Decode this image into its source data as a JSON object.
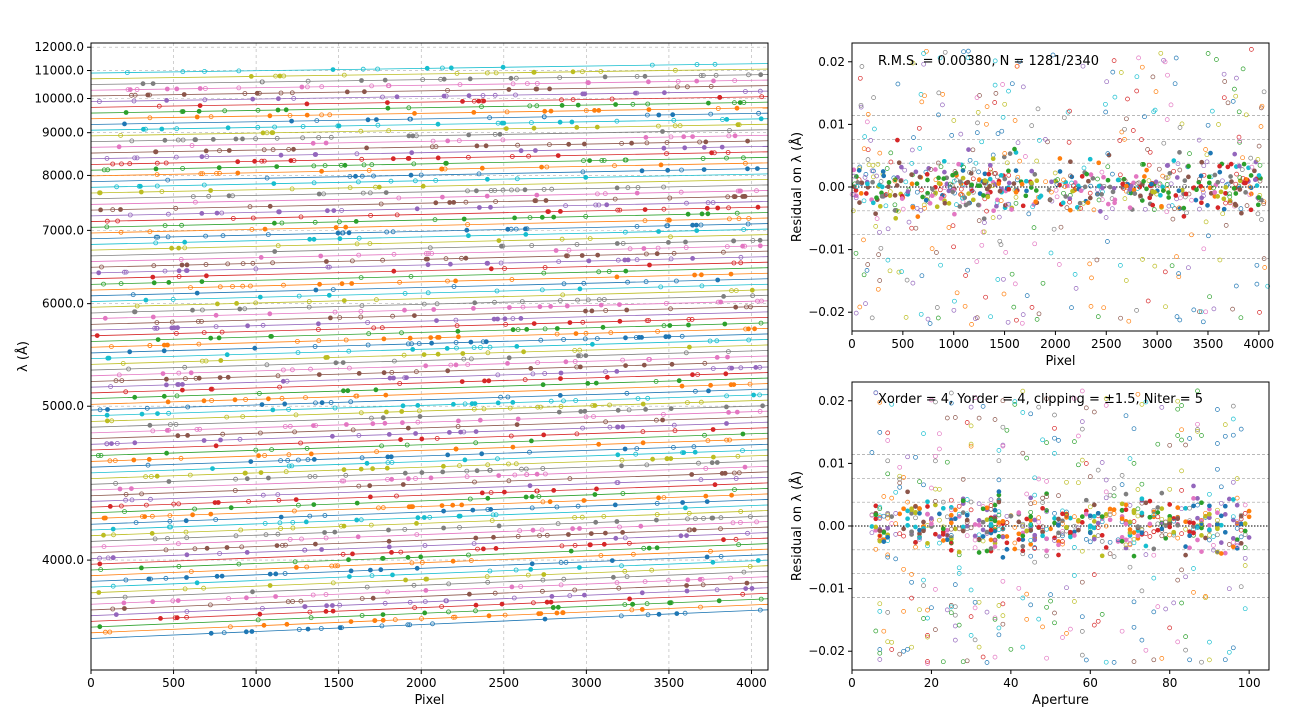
{
  "chart_data": [
    {
      "type": "scatter",
      "title": "",
      "xlabel": "Pixel",
      "ylabel": "λ (Å)",
      "xlim": [
        0,
        4100
      ],
      "ylim": [
        3500,
        12200
      ],
      "yscale": "reciprocal",
      "xticks": [
        0,
        500,
        1000,
        1500,
        2000,
        2500,
        3000,
        3500,
        4000
      ],
      "xtick_labels": [
        "0",
        "500",
        "1000",
        "1500",
        "2000",
        "2500",
        "3000",
        "3500",
        "4000"
      ],
      "yticks": [
        4000,
        5000,
        6000,
        7000,
        8000,
        9000,
        10000,
        11000,
        12000
      ],
      "ytick_labels": [
        "4000.0",
        "5000.0",
        "6000.0",
        "7000.0",
        "8000.0",
        "9000.0",
        "10000.0",
        "11000.0",
        "12000.0"
      ],
      "grid": true,
      "description_series": "one fitted wavelength line per echelle order (about 100 orders, lambda ≈ 3630 Å to 10900 Å at pixel 0, increasing ~3.5% across the detector); open and filled markers are identified arc lines",
      "order_lambda_range": [
        3630,
        10900
      ],
      "order_count": 100,
      "slope_fraction": 0.035,
      "colors": [
        "#1f77b4",
        "#ff7f0e",
        "#2ca02c",
        "#d62728",
        "#9467bd",
        "#8c564b",
        "#e377c2",
        "#7f7f7f",
        "#bcbd22",
        "#17becf"
      ]
    },
    {
      "type": "scatter",
      "title": "",
      "annotation": "R.M.S. = 0.00380, N = 1281/2340",
      "xlabel": "Pixel",
      "ylabel": "Residual on λ (Å)",
      "xlim": [
        0,
        4100
      ],
      "ylim": [
        -0.023,
        0.023
      ],
      "xticks": [
        0,
        500,
        1000,
        1500,
        2000,
        2500,
        3000,
        3500,
        4000
      ],
      "xtick_labels": [
        "0",
        "500",
        "1000",
        "1500",
        "2000",
        "2500",
        "3000",
        "3500",
        "4000"
      ],
      "yticks": [
        -0.02,
        -0.01,
        0.0,
        0.01,
        0.02
      ],
      "ytick_labels": [
        "−0.02",
        "−0.01",
        "0.00",
        "0.01",
        "0.02"
      ],
      "hlines_dashed": [
        -0.0114,
        -0.0076,
        -0.0038,
        0.0038,
        0.0076,
        0.0114
      ],
      "hline_dotted": 0.0,
      "rms": 0.0038,
      "n_used": 1281,
      "n_total": 2340
    },
    {
      "type": "scatter",
      "title": "",
      "annotation": "Xorder = 4, Yorder = 4, clipping = ±1.5, Niter = 5",
      "xlabel": "Aperture",
      "ylabel": "Residual on λ (Å)",
      "xlim": [
        0,
        105
      ],
      "ylim": [
        -0.023,
        0.023
      ],
      "xticks": [
        0,
        20,
        40,
        60,
        80,
        100
      ],
      "xtick_labels": [
        "0",
        "20",
        "40",
        "60",
        "80",
        "100"
      ],
      "yticks": [
        -0.02,
        -0.01,
        0.0,
        0.01,
        0.02
      ],
      "ytick_labels": [
        "−0.02",
        "−0.01",
        "0.00",
        "0.01",
        "0.02"
      ],
      "hlines_dashed": [
        -0.0114,
        -0.0076,
        -0.0038,
        0.0038,
        0.0076,
        0.0114
      ],
      "hline_dotted": 0.0,
      "aperture_range": [
        5,
        100
      ]
    }
  ]
}
